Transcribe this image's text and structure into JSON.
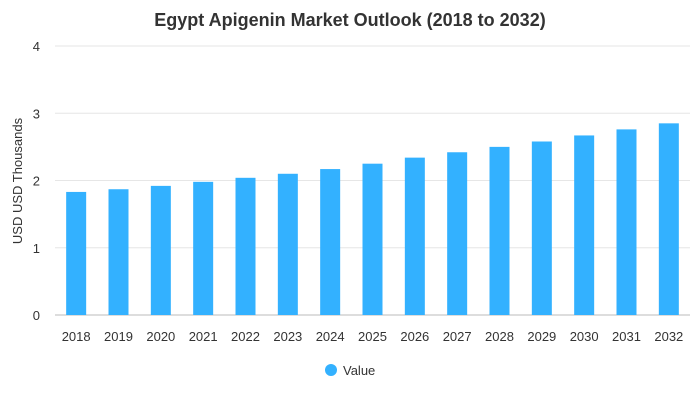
{
  "chart_data": {
    "type": "bar",
    "title": "Egypt Apigenin Market Outlook (2018 to 2032)",
    "xlabel": "",
    "ylabel": "USD USD Thousands",
    "categories": [
      "2018",
      "2019",
      "2020",
      "2021",
      "2022",
      "2023",
      "2024",
      "2025",
      "2026",
      "2027",
      "2028",
      "2029",
      "2030",
      "2031",
      "2032"
    ],
    "series": [
      {
        "name": "Value",
        "color": "#33b1ff",
        "values": [
          1.83,
          1.87,
          1.92,
          1.98,
          2.04,
          2.1,
          2.17,
          2.25,
          2.34,
          2.42,
          2.5,
          2.58,
          2.67,
          2.76,
          2.85
        ]
      }
    ],
    "ylim": [
      0,
      4
    ],
    "yticks": [
      "0",
      "1",
      "2",
      "3",
      "4"
    ],
    "grid": true,
    "legend_position": "bottom-center"
  }
}
